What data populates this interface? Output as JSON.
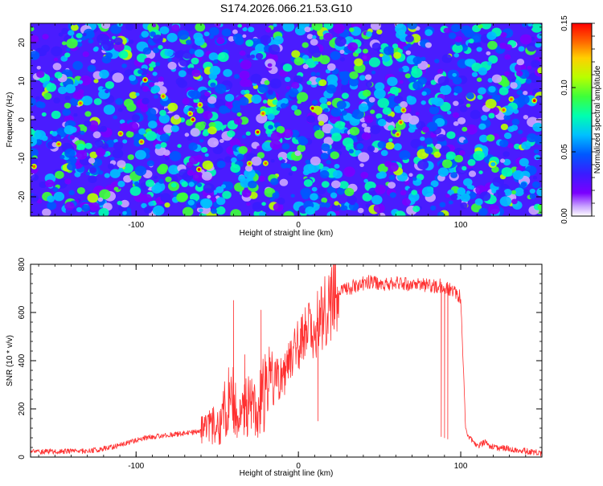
{
  "figure_title": "S174.2026.066.21.53.G10",
  "chart_data": [
    {
      "type": "heatmap",
      "title": "S174.2026.066.21.53.G10",
      "xlabel": "Height of straight line (km)",
      "ylabel": "Frequency (Hz)",
      "xlim": [
        -165,
        150
      ],
      "ylim": [
        -25,
        25
      ],
      "x_tick_labels": [
        "-100",
        "0",
        "100"
      ],
      "y_tick_labels": [
        "-20",
        "-10",
        "0",
        "10",
        "20"
      ],
      "colorbar": {
        "label": "Normalized spectral amplitude",
        "range": [
          0,
          0.15
        ],
        "tick_labels": [
          "0.00",
          "0.05",
          "0.10",
          "0.15"
        ]
      },
      "colors": [
        "#ffffff",
        "#c9a4ff",
        "#7a00ff",
        "#3a1cff",
        "#0058ff",
        "#00c0ff",
        "#00ffb0",
        "#3dff3a",
        "#b8ff00",
        "#ffd000",
        "#ff6000",
        "#ff0000"
      ],
      "grid": false,
      "legend": "none"
    },
    {
      "type": "line",
      "xlabel": "Height of straight line (km)",
      "ylabel": "SNR (10 * v/v)",
      "xlim": [
        -165,
        150
      ],
      "ylim": [
        0,
        800
      ],
      "x_tick_labels": [
        "-100",
        "0",
        "100"
      ],
      "y_tick_labels": [
        "0",
        "200",
        "400",
        "600",
        "800"
      ],
      "grid": false,
      "legend": "none",
      "line_color": "#ff3030",
      "envelope": {
        "x": [
          -165,
          -130,
          -115,
          -95,
          -75,
          -60,
          -48,
          -45,
          -42,
          -38,
          -35,
          -30,
          -25,
          -22,
          -18,
          -15,
          -10,
          -5,
          0,
          5,
          10,
          15,
          20,
          25,
          30,
          35,
          40,
          45,
          50,
          60,
          70,
          80,
          85,
          88,
          90,
          92,
          95,
          98,
          100,
          103,
          105,
          110,
          115,
          120,
          130,
          140,
          150
        ],
        "y": [
          22,
          25,
          40,
          80,
          95,
          105,
          140,
          200,
          240,
          230,
          180,
          220,
          220,
          260,
          300,
          320,
          330,
          400,
          450,
          500,
          560,
          600,
          640,
          690,
          700,
          710,
          720,
          730,
          720,
          720,
          715,
          710,
          710,
          710,
          700,
          700,
          690,
          680,
          660,
          120,
          80,
          45,
          60,
          40,
          35,
          25,
          15
        ]
      },
      "spikes": [
        {
          "x": -40,
          "y": 650
        },
        {
          "x": -33,
          "y": 425
        },
        {
          "x": -23,
          "y": 610
        },
        {
          "x": -20,
          "y": 395
        },
        {
          "x": -17,
          "y": 395
        },
        {
          "x": -5,
          "y": 480
        },
        {
          "x": 3,
          "y": 500
        },
        {
          "x": 12,
          "y": 560
        }
      ],
      "dips": [
        {
          "x": -10,
          "y": 270
        },
        {
          "x": 12,
          "y": 150
        },
        {
          "x": 88,
          "y": 85
        },
        {
          "x": 90,
          "y": 80
        },
        {
          "x": 92,
          "y": 75
        }
      ],
      "plateau_range": [
        25,
        100
      ],
      "plateau_range_y": [
        700,
        800
      ]
    }
  ]
}
